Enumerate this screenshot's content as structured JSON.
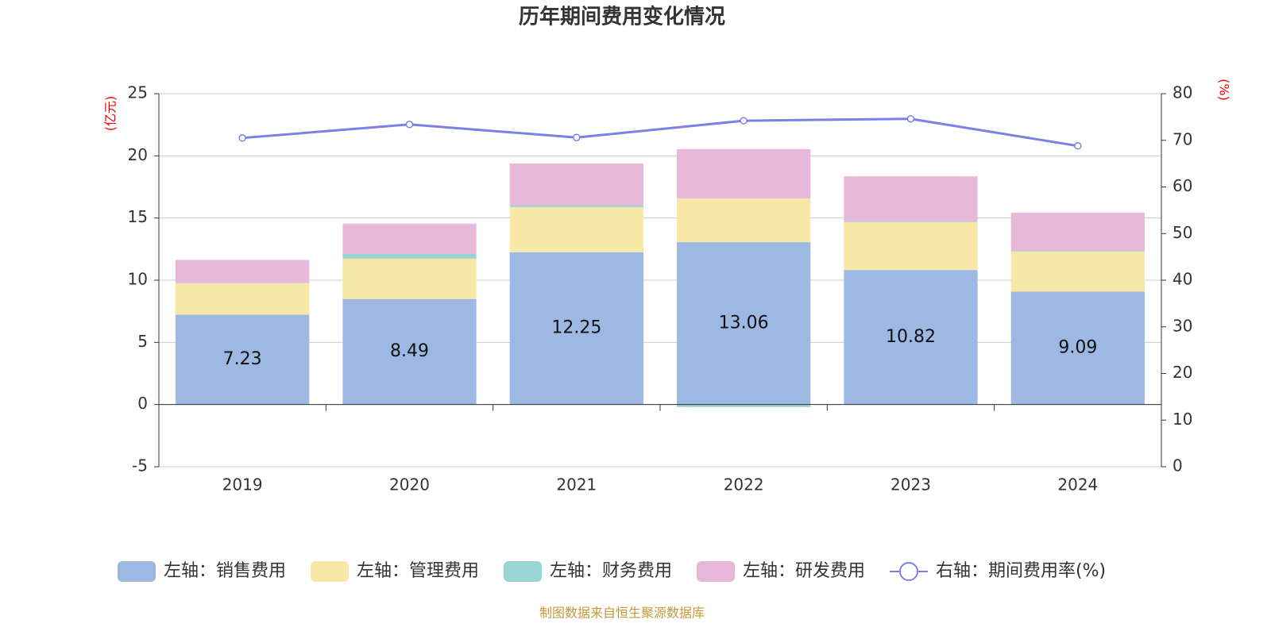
{
  "chart_data": {
    "type": "bar",
    "title": "历年期间费用变化情况",
    "y_label": "(亿元)",
    "y2_label": "(%)",
    "source": "制图数据来自恒生聚源数据库",
    "categories": [
      "2019",
      "2020",
      "2021",
      "2022",
      "2023",
      "2024"
    ],
    "series": [
      {
        "name": "左轴：销售费用",
        "color": "#9db8e2",
        "values": [
          7.23,
          8.49,
          12.25,
          13.06,
          10.82,
          9.09
        ],
        "labels": true
      },
      {
        "name": "左轴：管理费用",
        "color": "#f8e8a8",
        "values": [
          2.53,
          3.24,
          3.63,
          3.52,
          3.85,
          3.22
        ]
      },
      {
        "name": "左轴：财务费用",
        "color": "#98d4d4",
        "values": [
          0.02,
          0.38,
          0.12,
          -0.2,
          0.05,
          0.05
        ]
      },
      {
        "name": "左轴：研发费用",
        "color": "#e8b8d8",
        "values": [
          1.85,
          2.44,
          3.39,
          3.96,
          3.63,
          3.06
        ]
      },
      {
        "name": "右轴：期间费用率(%)",
        "color": "#7b7fe8",
        "type": "line",
        "axis": "y2",
        "values": [
          70.5,
          73.4,
          70.6,
          74.2,
          74.6,
          68.8
        ]
      }
    ],
    "ylim": [
      -5,
      25
    ],
    "yticks": [
      -5,
      0,
      5,
      10,
      15,
      20,
      25
    ],
    "y2lim": [
      0,
      80
    ],
    "y2ticks": [
      0,
      10,
      20,
      30,
      40,
      50,
      60,
      70,
      80
    ],
    "grid": true
  }
}
